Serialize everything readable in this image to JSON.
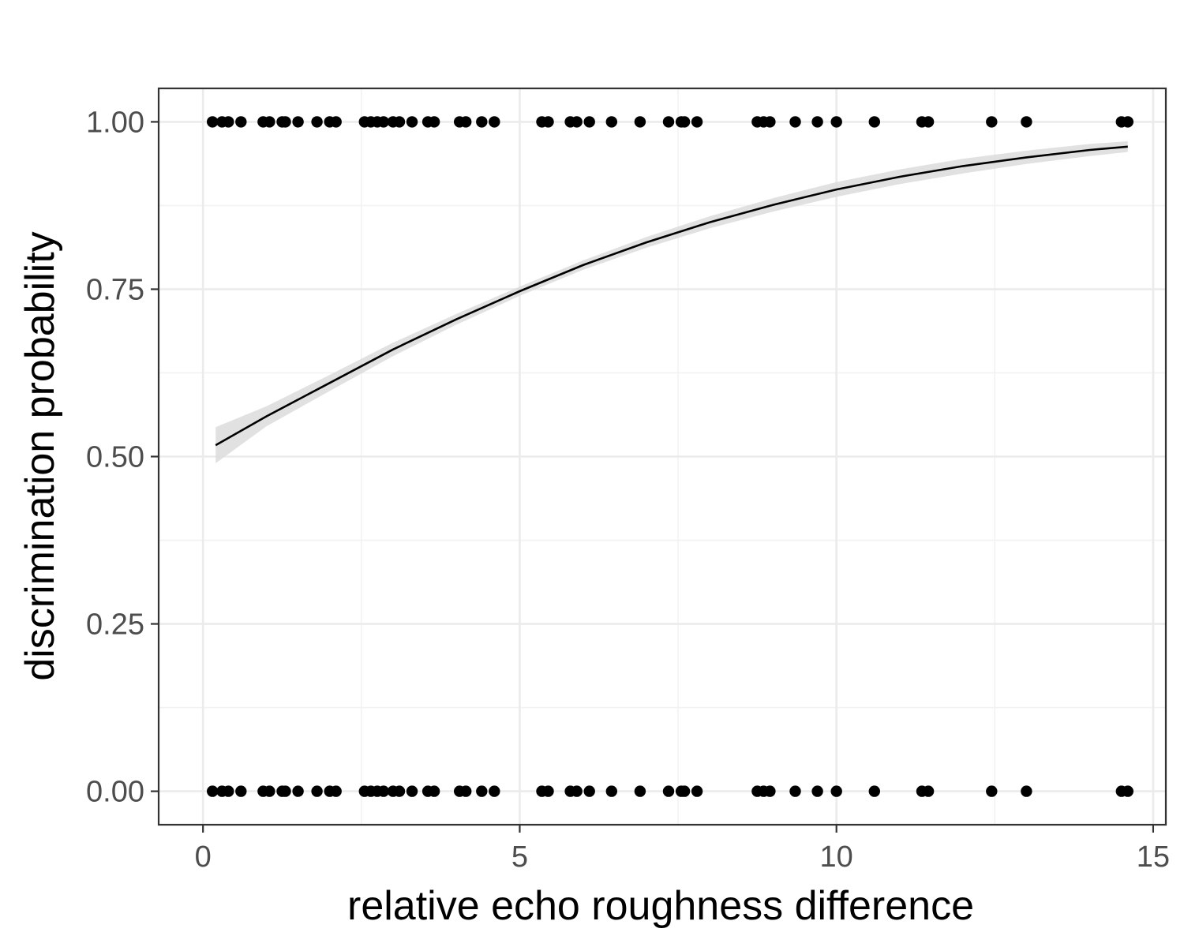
{
  "chart_data": {
    "type": "scatter",
    "xlabel": "relative echo roughness difference",
    "ylabel": "discrimination probability",
    "xlim": [
      -0.7,
      15.2
    ],
    "ylim": [
      -0.05,
      1.05
    ],
    "x_ticks": [
      0,
      5,
      10,
      15
    ],
    "x_tick_labels": [
      "0",
      "5",
      "10",
      "15"
    ],
    "y_ticks": [
      0,
      0.25,
      0.5,
      0.75,
      1
    ],
    "y_tick_labels": [
      "0.00",
      "0.25",
      "0.50",
      "0.75",
      "1.00"
    ],
    "grid": true,
    "points_x": [
      0.15,
      0.3,
      0.4,
      0.6,
      0.95,
      1.05,
      1.25,
      1.3,
      1.5,
      1.8,
      2.0,
      2.1,
      2.55,
      2.65,
      2.75,
      2.85,
      3.0,
      3.1,
      3.3,
      3.55,
      3.65,
      4.05,
      4.15,
      4.4,
      4.6,
      5.35,
      5.45,
      5.8,
      5.9,
      6.1,
      6.45,
      6.9,
      7.35,
      7.55,
      7.6,
      7.8,
      8.75,
      8.85,
      8.95,
      9.35,
      9.7,
      10.0,
      10.6,
      11.35,
      11.45,
      12.45,
      13.0,
      14.5,
      14.6
    ],
    "point_y_levels": [
      0,
      1
    ],
    "fit": {
      "x": [
        0.2,
        1,
        2,
        3,
        4,
        5,
        6,
        7,
        8,
        9,
        10,
        11,
        12,
        13,
        14,
        14.6
      ],
      "y": [
        0.517,
        0.56,
        0.61,
        0.66,
        0.705,
        0.747,
        0.786,
        0.82,
        0.85,
        0.876,
        0.899,
        0.918,
        0.934,
        0.947,
        0.958,
        0.963
      ],
      "ci_lower": [
        0.49,
        0.545,
        0.598,
        0.65,
        0.697,
        0.74,
        0.779,
        0.812,
        0.841,
        0.866,
        0.888,
        0.907,
        0.923,
        0.937,
        0.949,
        0.955
      ],
      "ci_upper": [
        0.544,
        0.575,
        0.622,
        0.67,
        0.713,
        0.754,
        0.793,
        0.828,
        0.859,
        0.886,
        0.91,
        0.929,
        0.945,
        0.957,
        0.967,
        0.971
      ]
    },
    "colors": {
      "points": "#000000",
      "fit_line": "#000000",
      "ribbon": "#dcdcdc",
      "grid_major": "#ebebeb",
      "grid_minor": "#f2f2f2",
      "panel_border": "#333333",
      "axis_text": "#4d4d4d"
    }
  }
}
